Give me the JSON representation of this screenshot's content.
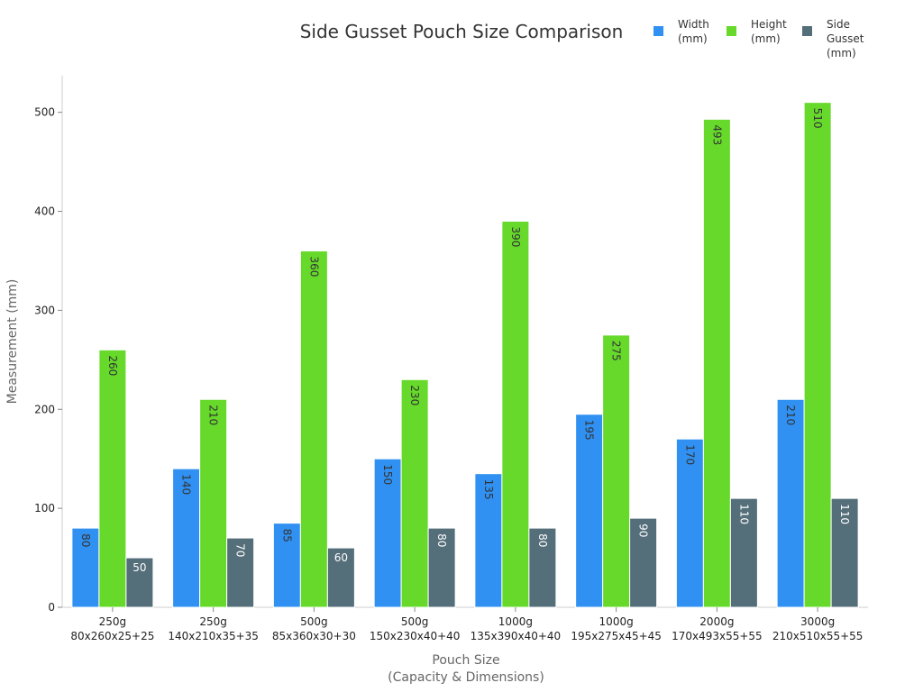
{
  "chart_data": {
    "type": "bar",
    "title": "Side Gusset Pouch Size Comparison",
    "xlabel": [
      "Pouch Size",
      "(Capacity & Dimensions)"
    ],
    "ylabel": "Measurement (mm)",
    "ylim": [
      0,
      537
    ],
    "yticks": [
      0,
      100,
      200,
      300,
      400,
      500
    ],
    "grid": false,
    "legend_position": "top-right",
    "categories": [
      [
        "250g",
        "80x260x25+25"
      ],
      [
        "250g",
        "140x210x35+35"
      ],
      [
        "500g",
        "85x360x30+30"
      ],
      [
        "500g",
        "150x230x40+40"
      ],
      [
        "1000g",
        "135x390x40+40"
      ],
      [
        "1000g",
        "195x275x45+45"
      ],
      [
        "2000g",
        "170x493x55+55"
      ],
      [
        "3000g",
        "210x510x55+55"
      ]
    ],
    "series": [
      {
        "name": [
          "Width",
          "(mm)"
        ],
        "color": "#3091f2",
        "values": [
          80,
          140,
          85,
          150,
          135,
          195,
          170,
          210
        ]
      },
      {
        "name": [
          "Height",
          "(mm)"
        ],
        "color": "#66d92b",
        "values": [
          260,
          210,
          360,
          230,
          390,
          275,
          493,
          510
        ]
      },
      {
        "name": [
          "Side",
          "Gusset",
          "(mm)"
        ],
        "color": "#546e7a",
        "values": [
          50,
          70,
          60,
          80,
          80,
          90,
          110,
          110
        ]
      }
    ]
  }
}
